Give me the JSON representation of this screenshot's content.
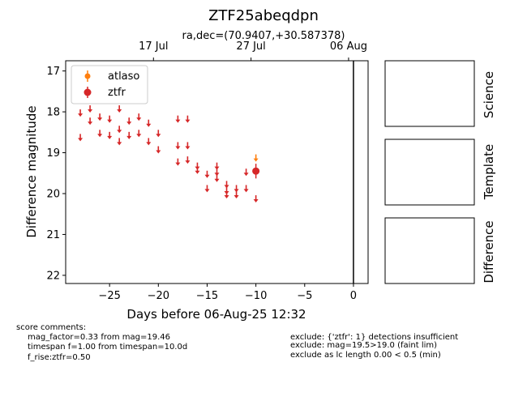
{
  "chart_data": {
    "type": "scatter",
    "title": "ZTF25abeqdpn",
    "subtitle": "ra,dec=(70.9407,+30.587378)",
    "xlabel": "Days before 06-Aug-25 12:32",
    "ylabel": "Difference magnitude",
    "xlim": [
      -29.5,
      1.5
    ],
    "ylim": [
      22.2,
      16.75
    ],
    "y_inverted": true,
    "x_ticks": [
      "-25",
      "-20",
      "-15",
      "-10",
      "-5",
      "0"
    ],
    "y_ticks": [
      "17",
      "18",
      "19",
      "20",
      "21",
      "22"
    ],
    "top_axis_ticks": [
      {
        "x": -20.5,
        "label": "17 Jul"
      },
      {
        "x": -10.5,
        "label": "27 Jul"
      },
      {
        "x": -0.5,
        "label": "06 Aug"
      }
    ],
    "vertical_line_x": 0,
    "legend_position": "top-left",
    "series": [
      {
        "name": "atlaso",
        "color": "#ff7f0e",
        "detections": [],
        "upper_limits": [
          {
            "x": -10.0,
            "y": 19.1
          }
        ]
      },
      {
        "name": "ztfr",
        "color": "#d62728",
        "detections": [
          {
            "x": -10.0,
            "y": 19.45,
            "err": 0.18
          }
        ],
        "upper_limits": [
          {
            "x": -28.0,
            "y": 18.0
          },
          {
            "x": -28.0,
            "y": 18.6
          },
          {
            "x": -27.0,
            "y": 17.9
          },
          {
            "x": -27.0,
            "y": 18.2
          },
          {
            "x": -26.0,
            "y": 18.1
          },
          {
            "x": -26.0,
            "y": 18.5
          },
          {
            "x": -25.0,
            "y": 18.15
          },
          {
            "x": -25.0,
            "y": 18.55
          },
          {
            "x": -24.0,
            "y": 17.9
          },
          {
            "x": -24.0,
            "y": 18.4
          },
          {
            "x": -24.0,
            "y": 18.7
          },
          {
            "x": -23.0,
            "y": 18.2
          },
          {
            "x": -23.0,
            "y": 18.55
          },
          {
            "x": -22.0,
            "y": 18.1
          },
          {
            "x": -22.0,
            "y": 18.5
          },
          {
            "x": -21.0,
            "y": 18.25
          },
          {
            "x": -21.0,
            "y": 18.7
          },
          {
            "x": -20.0,
            "y": 18.5
          },
          {
            "x": -20.0,
            "y": 18.9
          },
          {
            "x": -18.0,
            "y": 18.15
          },
          {
            "x": -18.0,
            "y": 18.8
          },
          {
            "x": -18.0,
            "y": 19.2
          },
          {
            "x": -17.0,
            "y": 18.15
          },
          {
            "x": -17.0,
            "y": 18.8
          },
          {
            "x": -17.0,
            "y": 19.15
          },
          {
            "x": -16.0,
            "y": 19.3
          },
          {
            "x": -16.0,
            "y": 19.4
          },
          {
            "x": -15.0,
            "y": 19.5
          },
          {
            "x": -15.0,
            "y": 19.85
          },
          {
            "x": -14.0,
            "y": 19.3
          },
          {
            "x": -14.0,
            "y": 19.45
          },
          {
            "x": -14.0,
            "y": 19.6
          },
          {
            "x": -13.0,
            "y": 19.75
          },
          {
            "x": -13.0,
            "y": 19.9
          },
          {
            "x": -13.0,
            "y": 20.0
          },
          {
            "x": -12.0,
            "y": 19.85
          },
          {
            "x": -12.0,
            "y": 20.0
          },
          {
            "x": -11.0,
            "y": 19.45
          },
          {
            "x": -11.0,
            "y": 19.85
          },
          {
            "x": -10.0,
            "y": 20.1
          }
        ]
      }
    ]
  },
  "side_panels": [
    {
      "label": "Science"
    },
    {
      "label": "Template"
    },
    {
      "label": "Difference"
    }
  ],
  "comments": {
    "header": "score comments:",
    "left_lines": [
      "mag_factor=0.33 from mag=19.46",
      "timespan f=1.00 from timespan=10.0d",
      "f_rise:ztfr=0.50"
    ],
    "right_lines": [
      "exclude: {'ztfr': 1} detections insufficient",
      "exclude: mag=19.5>19.0 (faint lim)",
      "exclude as lc length 0.00 < 0.5 (min)"
    ]
  }
}
